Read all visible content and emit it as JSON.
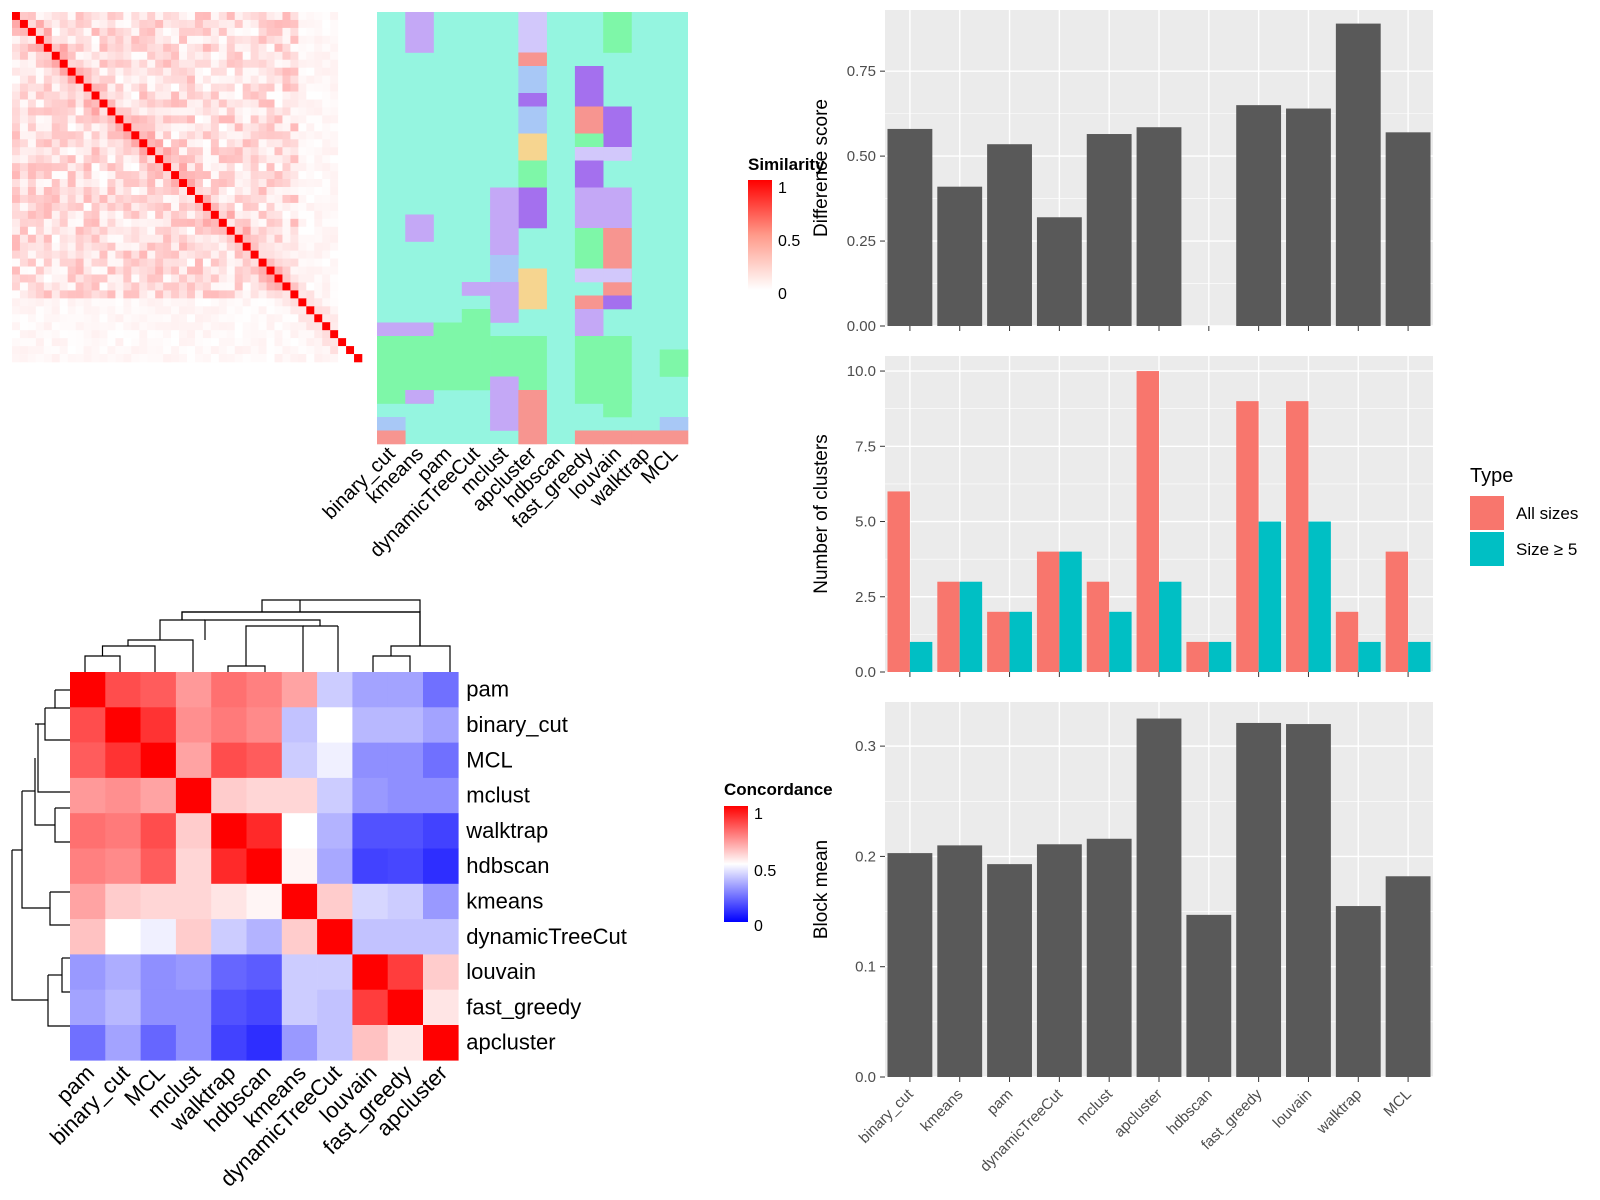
{
  "colors": {
    "panel_bg": "#ebebeb",
    "grid": "#ffffff",
    "bar_dark": "#595959",
    "series_all": "#f8766d",
    "series_size5": "#00bfc4",
    "sim_high": "#ff0000",
    "sim_low": "#ffffff",
    "conc_high": "#ff0000",
    "conc_mid": "#ffffff",
    "conc_low": "#0000ff",
    "class_teal": "#95f5e0",
    "class_purple": "#c4a8f6",
    "class_green": "#7ef7a8",
    "class_salmon": "#f79590",
    "class_yellow": "#f6d590",
    "class_blue": "#a8c8f6",
    "class_lavender": "#d2c8fb",
    "class_violet": "#a470ee"
  },
  "similarity_heatmap": {
    "legend": {
      "title": "Similarity",
      "ticks": [
        "1",
        "0.5",
        "0"
      ]
    },
    "column_labels": [
      "binary_cut",
      "kmeans",
      "pam",
      "dynamicTreeCut",
      "mclust",
      "apcluster",
      "hdbscan",
      "fast_greedy",
      "louvain",
      "walktrap",
      "MCL"
    ]
  },
  "concordance_heatmap": {
    "legend": {
      "title": "Concordance",
      "ticks": [
        "1",
        "0.5",
        "0"
      ]
    },
    "row_labels": [
      "pam",
      "binary_cut",
      "MCL",
      "mclust",
      "walktrap",
      "hdbscan",
      "kmeans",
      "dynamicTreeCut",
      "louvain",
      "fast_greedy",
      "apcluster"
    ],
    "column_labels": [
      "pam",
      "binary_cut",
      "MCL",
      "mclust",
      "walktrap",
      "hdbscan",
      "kmeans",
      "dynamicTreeCut",
      "louvain",
      "fast_greedy",
      "apcluster"
    ],
    "values": [
      [
        1.0,
        0.85,
        0.82,
        0.7,
        0.78,
        0.75,
        0.68,
        0.4,
        0.32,
        0.32,
        0.22
      ],
      [
        0.85,
        1.0,
        0.9,
        0.72,
        0.76,
        0.73,
        0.38,
        0.5,
        0.36,
        0.36,
        0.32
      ],
      [
        0.82,
        0.9,
        1.0,
        0.68,
        0.85,
        0.82,
        0.4,
        0.47,
        0.28,
        0.28,
        0.22
      ],
      [
        0.7,
        0.72,
        0.68,
        1.0,
        0.6,
        0.58,
        0.58,
        0.4,
        0.3,
        0.28,
        0.28
      ],
      [
        0.78,
        0.76,
        0.85,
        0.6,
        1.0,
        0.92,
        0.5,
        0.35,
        0.16,
        0.16,
        0.13
      ],
      [
        0.75,
        0.73,
        0.82,
        0.58,
        0.92,
        1.0,
        0.52,
        0.33,
        0.13,
        0.14,
        0.09
      ],
      [
        0.68,
        0.6,
        0.58,
        0.58,
        0.55,
        0.52,
        1.0,
        0.6,
        0.42,
        0.4,
        0.3
      ],
      [
        0.62,
        0.5,
        0.47,
        0.6,
        0.4,
        0.35,
        0.6,
        1.0,
        0.38,
        0.38,
        0.38
      ],
      [
        0.3,
        0.34,
        0.28,
        0.3,
        0.2,
        0.18,
        0.4,
        0.4,
        1.0,
        0.88,
        0.6
      ],
      [
        0.32,
        0.36,
        0.28,
        0.28,
        0.16,
        0.14,
        0.4,
        0.38,
        0.88,
        1.0,
        0.55
      ],
      [
        0.22,
        0.32,
        0.2,
        0.28,
        0.13,
        0.09,
        0.3,
        0.38,
        0.62,
        0.55,
        1.0
      ]
    ]
  },
  "chart_data": [
    {
      "type": "bar",
      "categories": [
        "binary_cut",
        "kmeans",
        "pam",
        "dynamicTreeCut",
        "mclust",
        "apcluster",
        "hdbscan",
        "fast_greedy",
        "louvain",
        "walktrap",
        "MCL"
      ],
      "values": [
        0.58,
        0.41,
        0.535,
        0.32,
        0.565,
        0.585,
        null,
        0.65,
        0.64,
        0.89,
        0.57
      ],
      "ylabel": "Difference score",
      "ylim": [
        0,
        0.93
      ],
      "yticks": [
        "0.00",
        "0.25",
        "0.50",
        "0.75"
      ],
      "grid": true
    },
    {
      "type": "bar",
      "categories": [
        "binary_cut",
        "kmeans",
        "pam",
        "dynamicTreeCut",
        "mclust",
        "apcluster",
        "hdbscan",
        "fast_greedy",
        "louvain",
        "walktrap",
        "MCL"
      ],
      "series": [
        {
          "name": "All sizes",
          "values": [
            6,
            3,
            2,
            4,
            3,
            10,
            1,
            9,
            9,
            2,
            4
          ]
        },
        {
          "name": "Size ≥ 5",
          "values": [
            1,
            3,
            2,
            4,
            2,
            3,
            1,
            5,
            5,
            1,
            1
          ]
        }
      ],
      "ylabel": "Number of clusters",
      "ylim": [
        0,
        10.5
      ],
      "yticks": [
        "0.0",
        "2.5",
        "5.0",
        "7.5",
        "10.0"
      ],
      "legend": {
        "title": "Type",
        "placement": "right"
      },
      "grid": true
    },
    {
      "type": "bar",
      "categories": [
        "binary_cut",
        "kmeans",
        "pam",
        "dynamicTreeCut",
        "mclust",
        "apcluster",
        "hdbscan",
        "fast_greedy",
        "louvain",
        "walktrap",
        "MCL"
      ],
      "values": [
        0.203,
        0.21,
        0.193,
        0.211,
        0.216,
        0.325,
        0.147,
        0.321,
        0.32,
        0.155,
        0.182
      ],
      "ylabel": "Block mean",
      "ylim": [
        0,
        0.34
      ],
      "yticks": [
        "0.0",
        "0.1",
        "0.2",
        "0.3"
      ],
      "grid": true
    }
  ]
}
